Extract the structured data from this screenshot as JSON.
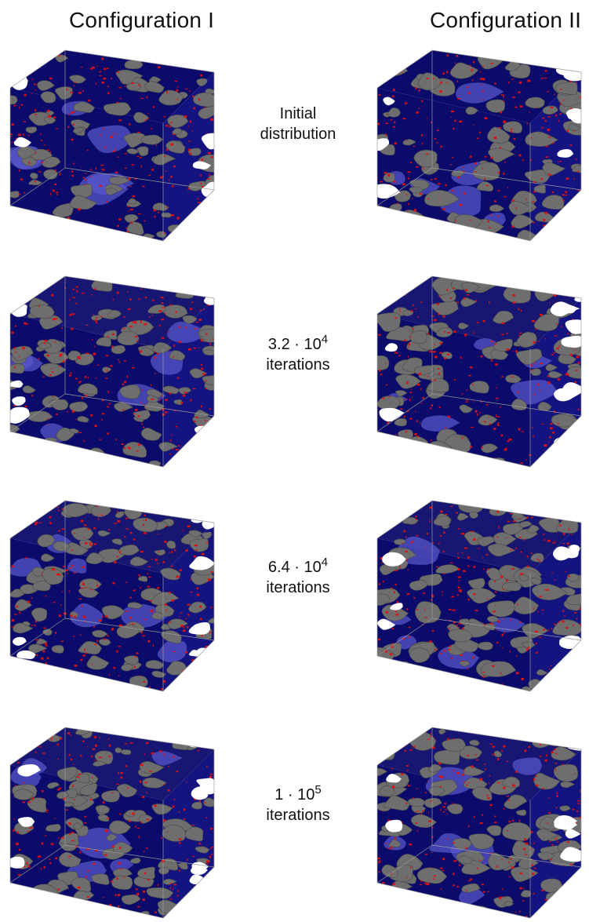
{
  "columns": [
    {
      "title": "Configuration I"
    },
    {
      "title": "Configuration II"
    }
  ],
  "rows": [
    {
      "line1": "Initial",
      "line2": "distribution",
      "blue": 0.8
    },
    {
      "base": "3.2 · 10",
      "exp": "4",
      "line2": "iterations",
      "blue": 0.45
    },
    {
      "base": "6.4 · 10",
      "exp": "4",
      "line2": "iterations",
      "blue": 0.4
    },
    {
      "base": "1 · 10",
      "exp": "5",
      "line2": "iterations",
      "blue": 0.35
    }
  ],
  "colors": {
    "blue": "#0b0b6b",
    "light_blue": "#5a5acf",
    "gray": "#6e6e6e",
    "red": "#e01010",
    "box": "#9a9a9a"
  }
}
